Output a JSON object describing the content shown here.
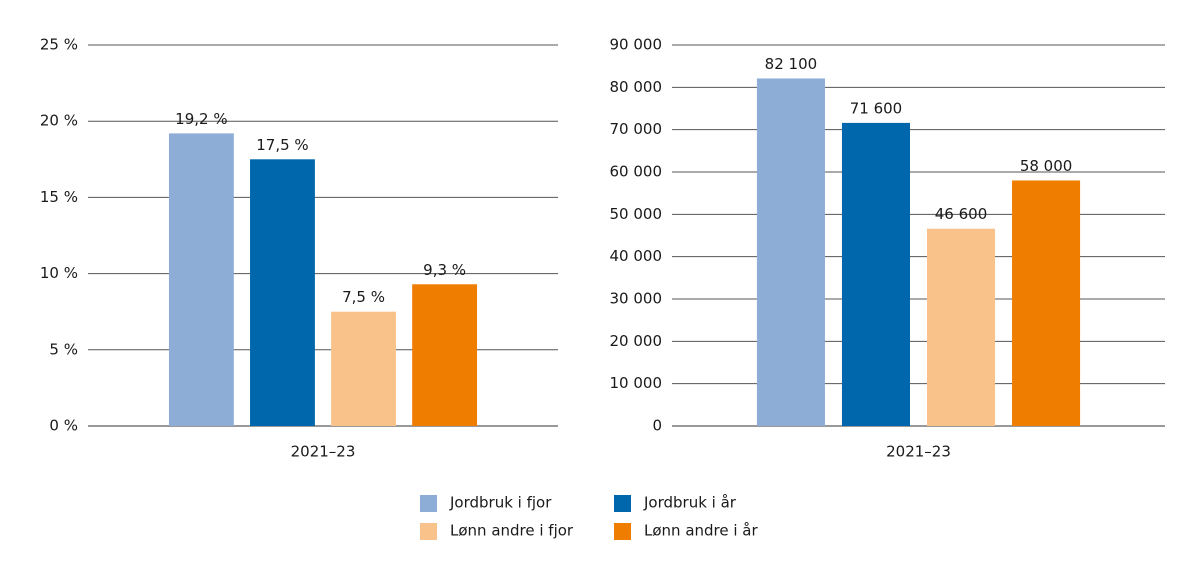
{
  "chart_data": [
    {
      "type": "bar",
      "categories": [
        "2021–23"
      ],
      "series": [
        {
          "name": "Jordbruk i fjor",
          "color": "#8eadd6",
          "values": [
            19.2
          ],
          "value_labels": [
            "19,2 %"
          ]
        },
        {
          "name": "Jordbruk i år",
          "color": "#0067ac",
          "values": [
            17.5
          ],
          "value_labels": [
            "17,5 %"
          ]
        },
        {
          "name": "Lønn andre i fjor",
          "color": "#f9c28b",
          "values": [
            7.5
          ],
          "value_labels": [
            "7,5 %"
          ]
        },
        {
          "name": "Lønn andre i år",
          "color": "#ef7d00",
          "values": [
            9.3
          ],
          "value_labels": [
            "9,3 %"
          ]
        }
      ],
      "ylim": [
        0,
        25
      ],
      "yticks": [
        {
          "value": 0,
          "label": "0 %"
        },
        {
          "value": 5,
          "label": "5 %"
        },
        {
          "value": 10,
          "label": "10 %"
        },
        {
          "value": 15,
          "label": "15 %"
        },
        {
          "value": 20,
          "label": "20 %"
        },
        {
          "value": 25,
          "label": "25 %"
        }
      ],
      "grid": true
    },
    {
      "type": "bar",
      "categories": [
        "2021–23"
      ],
      "series": [
        {
          "color": "#8eadd6",
          "values": [
            82100
          ],
          "value_labels": [
            "82 100"
          ]
        },
        {
          "color": "#0067ac",
          "values": [
            71600
          ],
          "value_labels": [
            "71 600"
          ]
        },
        {
          "color": "#f9c28b",
          "values": [
            46600
          ],
          "value_labels": [
            "46 600"
          ]
        },
        {
          "color": "#ef7d00",
          "values": [
            58000
          ],
          "value_labels": [
            "58 000"
          ]
        }
      ],
      "ylim": [
        0,
        90000
      ],
      "yticks": [
        0,
        {
          "value": 10000,
          "label": "10 000"
        },
        {
          "value": 20000,
          "label": "20 000"
        },
        {
          "value": 30000,
          "label": "30 000"
        },
        {
          "value": 40000,
          "label": "40 000"
        },
        {
          "value": 50000,
          "label": "50 000"
        },
        {
          "value": 60000,
          "label": "60 000"
        },
        {
          "value": 70000,
          "label": "70 000"
        },
        {
          "value": 80000,
          "label": "80 000"
        },
        {
          "value": 90000,
          "label": "90 000"
        }
      ],
      "grid": true
    }
  ]
}
